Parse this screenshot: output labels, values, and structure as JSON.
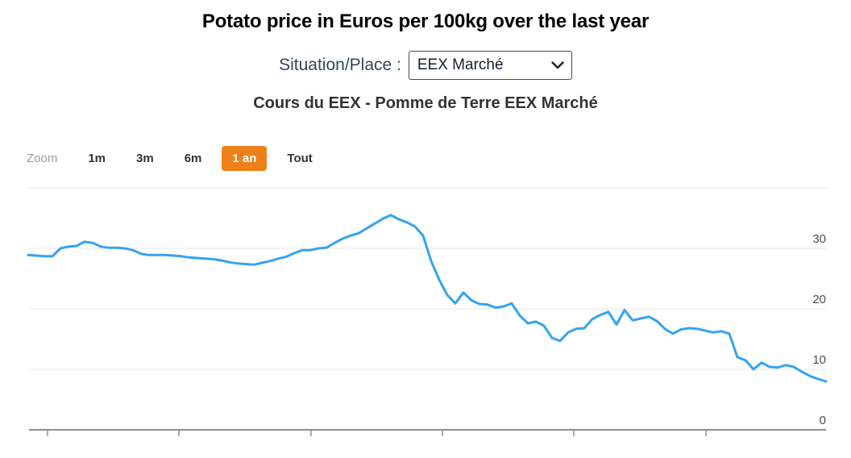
{
  "page": {
    "title": "Potato price in Euros per 100kg over the last year"
  },
  "controls": {
    "label": "Situation/Place :",
    "select_value": "EEX Marché"
  },
  "range_selector": {
    "zoom_label": "Zoom",
    "buttons": [
      "1m",
      "3m",
      "6m",
      "1 an",
      "Tout"
    ],
    "active": "1 an"
  },
  "chart_data": {
    "type": "line",
    "title": "Cours du EEX - Pomme de Terre EEX Marché",
    "xlabel": "",
    "ylabel": "",
    "ylim": [
      0,
      40
    ],
    "yticks": [
      0,
      10,
      20,
      30
    ],
    "grid": true,
    "legend": false,
    "x_ticks_labeled": false,
    "x_span": "1 an",
    "series": [
      {
        "name": "Pomme de Terre EEX Marché",
        "unit": "Euros per 100kg",
        "values": [
          28.9,
          28.8,
          28.7,
          28.7,
          30.0,
          30.3,
          30.4,
          31.1,
          30.9,
          30.3,
          30.1,
          30.1,
          30.0,
          29.7,
          29.1,
          28.9,
          28.9,
          28.9,
          28.8,
          28.7,
          28.5,
          28.4,
          28.3,
          28.2,
          28.0,
          27.7,
          27.5,
          27.4,
          27.3,
          27.6,
          27.9,
          28.3,
          28.6,
          29.2,
          29.7,
          29.7,
          30.0,
          30.1,
          30.9,
          31.6,
          32.1,
          32.5,
          33.3,
          34.1,
          34.9,
          35.5,
          34.8,
          34.3,
          33.6,
          32.1,
          27.9,
          24.8,
          22.3,
          20.9,
          22.7,
          21.4,
          20.8,
          20.7,
          20.2,
          20.4,
          20.9,
          18.9,
          17.6,
          17.9,
          17.2,
          15.2,
          14.7,
          16.1,
          16.7,
          16.8,
          18.3,
          19.0,
          19.5,
          17.4,
          19.8,
          18.1,
          18.4,
          18.7,
          18.0,
          16.7,
          15.9,
          16.6,
          16.8,
          16.7,
          16.4,
          16.1,
          16.3,
          15.9,
          12.0,
          11.5,
          10.0,
          11.1,
          10.4,
          10.3,
          10.7,
          10.4,
          9.6,
          8.9,
          8.4,
          8.0
        ]
      }
    ]
  },
  "colors": {
    "line": "#35a3f1",
    "active_button_bg": "#ef8019",
    "active_button_text": "#ffffff",
    "button_text": "#333333",
    "zoom_label": "#9b9b9b",
    "grid": "#e7e7e7",
    "axis": "#8f8f8f",
    "tick_label": "#4d4d4d",
    "chart_title": "#333333"
  }
}
